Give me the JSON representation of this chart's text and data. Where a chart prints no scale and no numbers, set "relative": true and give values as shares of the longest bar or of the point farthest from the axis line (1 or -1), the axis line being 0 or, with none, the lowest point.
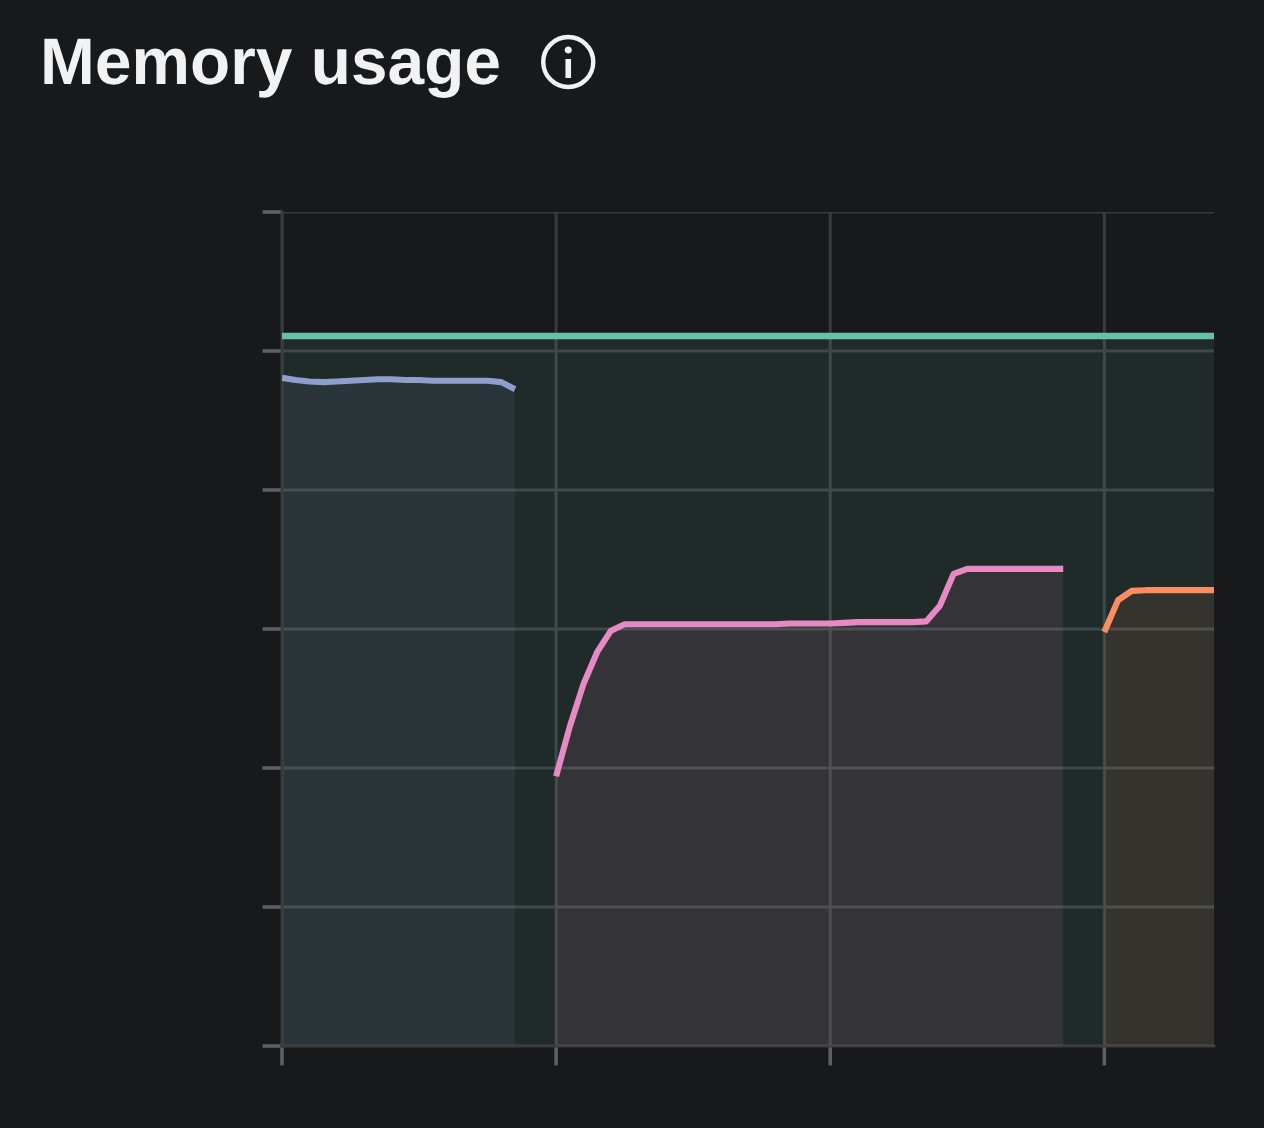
{
  "chart_data": {
    "type": "area",
    "title": "Memory usage",
    "relative": true,
    "grid": true,
    "categories": [
      null,
      null,
      null,
      null,
      null,
      null,
      null,
      null,
      null,
      null,
      null,
      null,
      null,
      null,
      null,
      null,
      null,
      null,
      null,
      null,
      null,
      null,
      null,
      null,
      null,
      null,
      null,
      null,
      null,
      null,
      null,
      null,
      null,
      null,
      null,
      null,
      null,
      null,
      null,
      null,
      null,
      null,
      null,
      null,
      null,
      null,
      null,
      null,
      null,
      null,
      null,
      null,
      null,
      null,
      null,
      null,
      null,
      null,
      null,
      null,
      null,
      null,
      null,
      null,
      null,
      null,
      null,
      null,
      null
    ],
    "series": [
      {
        "color": "#66c2a5",
        "values": [
          1,
          1,
          1,
          1,
          1,
          1,
          1,
          1,
          1,
          1,
          1,
          1,
          1,
          1,
          1,
          1,
          1,
          1,
          1,
          1,
          1,
          1,
          1,
          1,
          1,
          1,
          1,
          1,
          1,
          1,
          1,
          1,
          1,
          1,
          1,
          1,
          1,
          1,
          1,
          1,
          1,
          1,
          1,
          1,
          1,
          1,
          1,
          1,
          1,
          1,
          1,
          1,
          1,
          1,
          1,
          1,
          1,
          1,
          1,
          1,
          1,
          1,
          1,
          1,
          1,
          1,
          1,
          1,
          1
        ]
      },
      {
        "color": "#8da0cb",
        "values": [
          0.941,
          0.938,
          0.936,
          0.935,
          0.936,
          0.937,
          0.938,
          0.939,
          0.939,
          0.938,
          0.938,
          0.937,
          0.937,
          0.937,
          0.937,
          0.937,
          0.935,
          0.925,
          null,
          null,
          null,
          null,
          null,
          null,
          null,
          null,
          null,
          null,
          null,
          null,
          null,
          null,
          null,
          null,
          null,
          null,
          null,
          null,
          null,
          null,
          null,
          null,
          null,
          null,
          null,
          null,
          null,
          null,
          null,
          null,
          null,
          null,
          null,
          null,
          null,
          null,
          null,
          null,
          null,
          null,
          null,
          null,
          null,
          null,
          null,
          null,
          null,
          null,
          null
        ]
      },
      {
        "color": "#e78ac3",
        "values": [
          null,
          null,
          null,
          null,
          null,
          null,
          null,
          null,
          null,
          null,
          null,
          null,
          null,
          null,
          null,
          null,
          null,
          null,
          null,
          null,
          0.38,
          0.45,
          0.51,
          0.555,
          0.585,
          0.594,
          0.594,
          0.594,
          0.594,
          0.594,
          0.594,
          0.594,
          0.594,
          0.594,
          0.594,
          0.594,
          0.594,
          0.595,
          0.595,
          0.595,
          0.595,
          0.596,
          0.597,
          0.597,
          0.597,
          0.597,
          0.597,
          0.598,
          0.62,
          0.665,
          0.672,
          0.672,
          0.672,
          0.672,
          0.672,
          0.672,
          0.672,
          0.672,
          null,
          null,
          null,
          null,
          null,
          null,
          null,
          null,
          null,
          null,
          null
        ]
      },
      {
        "color": "#fc8d62",
        "values": [
          null,
          null,
          null,
          null,
          null,
          null,
          null,
          null,
          null,
          null,
          null,
          null,
          null,
          null,
          null,
          null,
          null,
          null,
          null,
          null,
          null,
          null,
          null,
          null,
          null,
          null,
          null,
          null,
          null,
          null,
          null,
          null,
          null,
          null,
          null,
          null,
          null,
          null,
          null,
          null,
          null,
          null,
          null,
          null,
          null,
          null,
          null,
          null,
          null,
          null,
          null,
          null,
          null,
          null,
          null,
          null,
          null,
          null,
          null,
          null,
          0.583,
          0.628,
          0.641,
          0.642,
          0.642,
          0.642,
          0.642,
          0.642,
          0.642
        ]
      }
    ]
  }
}
